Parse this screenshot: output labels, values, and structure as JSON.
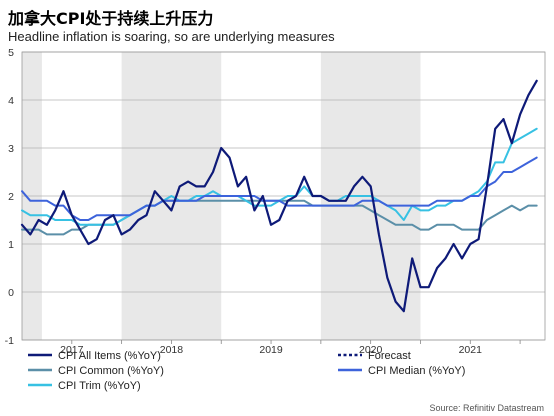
{
  "title": "加拿大CPI处于持续上升压力",
  "subtitle": "Headline inflation is soaring, so are underlying measures",
  "source": "Source: Refinitiv Datastream",
  "chart_data": {
    "type": "line",
    "ylim": [
      -1,
      5
    ],
    "yticks": [
      "-1",
      "0",
      "1",
      "2",
      "3",
      "4",
      "5"
    ],
    "xlim": [
      2016.5,
      2021.75
    ],
    "xtick_labels": [
      {
        "label": "2017",
        "x": 2017.0
      },
      {
        "label": "2018",
        "x": 2018.0
      },
      {
        "label": "2019",
        "x": 2019.0
      },
      {
        "label": "2020",
        "x": 2020.0
      },
      {
        "label": "2021",
        "x": 2021.0
      }
    ],
    "shaded_periods": [
      [
        2016.5,
        2016.7
      ],
      [
        2017.5,
        2018.5
      ],
      [
        2019.5,
        2020.5
      ]
    ],
    "grid": "horizontal",
    "legend": {
      "placement": "bottom",
      "entries": [
        {
          "label": "CPI All Items (%YoY)",
          "color": "#0e1a78",
          "style": "solid"
        },
        {
          "label": "Forecast",
          "color": "#0e1a78",
          "style": "dotted"
        },
        {
          "label": "CPI Common (%YoY)",
          "color": "#5b8fa8",
          "style": "solid"
        },
        {
          "label": "CPI Median (%YoY)",
          "color": "#3d63db",
          "style": "solid"
        },
        {
          "label": "CPI Trim (%YoY)",
          "color": "#37c1e3",
          "style": "solid"
        }
      ]
    },
    "series": [
      {
        "name": "CPI All Items (%YoY)",
        "color": "#0e1a78",
        "width": 2.2,
        "x": [
          2016.5,
          2016.583,
          2016.667,
          2016.75,
          2016.833,
          2016.917,
          2017.0,
          2017.083,
          2017.167,
          2017.25,
          2017.333,
          2017.417,
          2017.5,
          2017.583,
          2017.667,
          2017.75,
          2017.833,
          2017.917,
          2018.0,
          2018.083,
          2018.167,
          2018.25,
          2018.333,
          2018.417,
          2018.5,
          2018.583,
          2018.667,
          2018.75,
          2018.833,
          2018.917,
          2019.0,
          2019.083,
          2019.167,
          2019.25,
          2019.333,
          2019.417,
          2019.5,
          2019.583,
          2019.667,
          2019.75,
          2019.833,
          2019.917,
          2020.0,
          2020.083,
          2020.167,
          2020.25,
          2020.333,
          2020.417,
          2020.5,
          2020.583,
          2020.667,
          2020.75,
          2020.833,
          2020.917,
          2021.0,
          2021.083,
          2021.167,
          2021.25,
          2021.333
        ],
        "values": [
          1.4,
          1.2,
          1.5,
          1.4,
          1.7,
          2.1,
          1.6,
          1.3,
          1.0,
          1.1,
          1.5,
          1.6,
          1.2,
          1.3,
          1.5,
          1.6,
          2.1,
          1.9,
          1.7,
          2.2,
          2.3,
          2.2,
          2.2,
          2.5,
          3.0,
          2.8,
          2.2,
          2.4,
          1.7,
          2.0,
          1.4,
          1.5,
          1.9,
          2.0,
          2.4,
          2.0,
          2.0,
          1.9,
          1.9,
          1.9,
          2.2,
          2.4,
          2.2,
          1.2,
          0.3,
          -0.2,
          -0.4,
          0.7,
          0.1,
          0.1,
          0.5,
          0.7,
          1.0,
          0.7,
          1.0,
          1.1,
          2.2,
          3.4,
          3.6
        ]
      },
      {
        "name": "Forecast",
        "color": "#0e1a78",
        "width": 2.2,
        "x": [
          2021.333,
          2021.417,
          2021.5,
          2021.583,
          2021.667
        ],
        "values": [
          3.6,
          3.1,
          3.7,
          4.1,
          4.4
        ]
      },
      {
        "name": "CPI Common (%YoY)",
        "color": "#5b8fa8",
        "width": 2.0,
        "x": [
          2016.5,
          2016.583,
          2016.667,
          2016.75,
          2016.833,
          2016.917,
          2017.0,
          2017.083,
          2017.167,
          2017.25,
          2017.333,
          2017.417,
          2017.5,
          2017.583,
          2017.667,
          2017.75,
          2017.833,
          2017.917,
          2018.0,
          2018.083,
          2018.167,
          2018.25,
          2018.333,
          2018.417,
          2018.5,
          2018.583,
          2018.667,
          2018.75,
          2018.833,
          2018.917,
          2019.0,
          2019.083,
          2019.167,
          2019.25,
          2019.333,
          2019.417,
          2019.5,
          2019.583,
          2019.667,
          2019.75,
          2019.833,
          2019.917,
          2020.0,
          2020.083,
          2020.167,
          2020.25,
          2020.333,
          2020.417,
          2020.5,
          2020.583,
          2020.667,
          2020.75,
          2020.833,
          2020.917,
          2021.0,
          2021.083,
          2021.167,
          2021.25,
          2021.333,
          2021.417,
          2021.5,
          2021.583,
          2021.667
        ],
        "values": [
          1.3,
          1.3,
          1.3,
          1.2,
          1.2,
          1.2,
          1.3,
          1.3,
          1.4,
          1.4,
          1.4,
          1.4,
          1.5,
          1.6,
          1.7,
          1.8,
          1.8,
          1.9,
          1.9,
          1.9,
          1.9,
          1.9,
          1.9,
          1.9,
          1.9,
          1.9,
          1.9,
          1.9,
          1.9,
          1.9,
          1.9,
          1.9,
          1.9,
          1.9,
          1.9,
          1.8,
          1.8,
          1.8,
          1.8,
          1.8,
          1.8,
          1.8,
          1.7,
          1.6,
          1.5,
          1.4,
          1.4,
          1.4,
          1.3,
          1.3,
          1.4,
          1.4,
          1.4,
          1.3,
          1.3,
          1.3,
          1.5,
          1.6,
          1.7,
          1.8,
          1.7,
          1.8,
          1.8
        ]
      },
      {
        "name": "CPI Median (%YoY)",
        "color": "#3d63db",
        "width": 2.0,
        "x": [
          2016.5,
          2016.583,
          2016.667,
          2016.75,
          2016.833,
          2016.917,
          2017.0,
          2017.083,
          2017.167,
          2017.25,
          2017.333,
          2017.417,
          2017.5,
          2017.583,
          2017.667,
          2017.75,
          2017.833,
          2017.917,
          2018.0,
          2018.083,
          2018.167,
          2018.25,
          2018.333,
          2018.417,
          2018.5,
          2018.583,
          2018.667,
          2018.75,
          2018.833,
          2018.917,
          2019.0,
          2019.083,
          2019.167,
          2019.25,
          2019.333,
          2019.417,
          2019.5,
          2019.583,
          2019.667,
          2019.75,
          2019.833,
          2019.917,
          2020.0,
          2020.083,
          2020.167,
          2020.25,
          2020.333,
          2020.417,
          2020.5,
          2020.583,
          2020.667,
          2020.75,
          2020.833,
          2020.917,
          2021.0,
          2021.083,
          2021.167,
          2021.25,
          2021.333,
          2021.417,
          2021.5,
          2021.583,
          2021.667
        ],
        "values": [
          2.1,
          1.9,
          1.9,
          1.9,
          1.8,
          1.8,
          1.6,
          1.5,
          1.5,
          1.6,
          1.6,
          1.6,
          1.6,
          1.6,
          1.7,
          1.8,
          1.8,
          1.9,
          1.9,
          1.9,
          1.9,
          1.9,
          2.0,
          2.0,
          2.0,
          2.0,
          2.0,
          2.0,
          2.0,
          1.9,
          1.9,
          1.9,
          1.8,
          1.8,
          1.8,
          1.8,
          1.8,
          1.8,
          1.8,
          1.8,
          1.8,
          1.9,
          1.9,
          1.9,
          1.8,
          1.8,
          1.8,
          1.8,
          1.8,
          1.8,
          1.9,
          1.9,
          1.9,
          1.9,
          2.0,
          2.0,
          2.2,
          2.3,
          2.5,
          2.5,
          2.6,
          2.7,
          2.8
        ]
      },
      {
        "name": "CPI Trim (%YoY)",
        "color": "#37c1e3",
        "width": 2.0,
        "x": [
          2016.5,
          2016.583,
          2016.667,
          2016.75,
          2016.833,
          2016.917,
          2017.0,
          2017.083,
          2017.167,
          2017.25,
          2017.333,
          2017.417,
          2017.5,
          2017.583,
          2017.667,
          2017.75,
          2017.833,
          2017.917,
          2018.0,
          2018.083,
          2018.167,
          2018.25,
          2018.333,
          2018.417,
          2018.5,
          2018.583,
          2018.667,
          2018.75,
          2018.833,
          2018.917,
          2019.0,
          2019.083,
          2019.167,
          2019.25,
          2019.333,
          2019.417,
          2019.5,
          2019.583,
          2019.667,
          2019.75,
          2019.833,
          2019.917,
          2020.0,
          2020.083,
          2020.167,
          2020.25,
          2020.333,
          2020.417,
          2020.5,
          2020.583,
          2020.667,
          2020.75,
          2020.833,
          2020.917,
          2021.0,
          2021.083,
          2021.167,
          2021.25,
          2021.333,
          2021.417,
          2021.5,
          2021.583,
          2021.667
        ],
        "values": [
          1.7,
          1.6,
          1.6,
          1.6,
          1.5,
          1.5,
          1.5,
          1.4,
          1.4,
          1.4,
          1.4,
          1.4,
          1.5,
          1.6,
          1.7,
          1.8,
          1.8,
          1.9,
          2.0,
          1.9,
          1.9,
          2.0,
          2.0,
          2.1,
          2.0,
          2.0,
          2.0,
          1.9,
          1.8,
          1.8,
          1.8,
          1.9,
          2.0,
          2.0,
          2.2,
          2.0,
          2.0,
          1.9,
          1.9,
          2.0,
          2.0,
          2.0,
          2.0,
          1.9,
          1.8,
          1.7,
          1.5,
          1.8,
          1.7,
          1.7,
          1.8,
          1.8,
          1.9,
          1.9,
          2.0,
          2.1,
          2.3,
          2.7,
          2.7,
          3.1,
          3.2,
          3.3,
          3.4
        ]
      }
    ]
  }
}
